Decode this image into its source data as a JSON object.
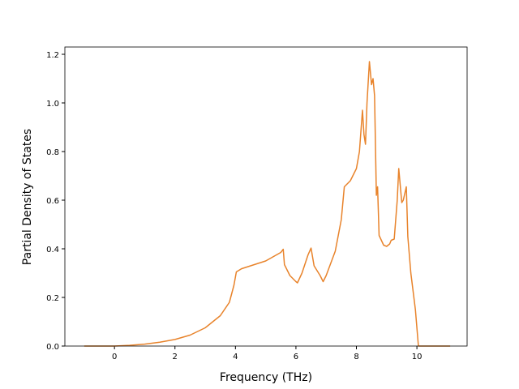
{
  "chart_data": {
    "type": "line",
    "xlabel": "Frequency (THz)",
    "ylabel": "Partial Density of States",
    "x": [
      -1,
      0,
      0.5,
      1,
      1.5,
      2,
      2.5,
      3,
      3.5,
      3.8,
      3.95,
      4.03,
      4.2,
      4.5,
      5,
      5.5,
      5.58,
      5.62,
      5.8,
      6,
      6.05,
      6.2,
      6.4,
      6.5,
      6.6,
      6.8,
      6.9,
      7,
      7.3,
      7.5,
      7.6,
      7.8,
      8,
      8.1,
      8.2,
      8.25,
      8.3,
      8.35,
      8.43,
      8.5,
      8.55,
      8.6,
      8.66,
      8.7,
      8.75,
      8.9,
      9,
      9.1,
      9.15,
      9.25,
      9.35,
      9.4,
      9.45,
      9.5,
      9.55,
      9.65,
      9.7,
      9.8,
      9.95,
      10.05,
      11.1
    ],
    "values": [
      0,
      0,
      0.003,
      0.008,
      0.016,
      0.027,
      0.045,
      0.075,
      0.125,
      0.18,
      0.25,
      0.305,
      0.318,
      0.33,
      0.35,
      0.385,
      0.398,
      0.335,
      0.29,
      0.265,
      0.26,
      0.3,
      0.375,
      0.403,
      0.33,
      0.29,
      0.265,
      0.29,
      0.39,
      0.52,
      0.655,
      0.68,
      0.73,
      0.8,
      0.97,
      0.87,
      0.83,
      1.0,
      1.17,
      1.075,
      1.1,
      1.03,
      0.62,
      0.655,
      0.455,
      0.415,
      0.41,
      0.42,
      0.435,
      0.44,
      0.6,
      0.73,
      0.66,
      0.59,
      0.6,
      0.655,
      0.45,
      0.3,
      0.15,
      0,
      0
    ],
    "color": "#e8832b",
    "xlim": [
      -1.64,
      11.66
    ],
    "xticks": [
      0,
      2,
      4,
      6,
      8,
      10
    ],
    "ylim": [
      0,
      1.23
    ],
    "yticks": [
      {
        "value": 0,
        "label": "0.0"
      },
      0.2,
      0.4,
      0.6,
      0.8,
      {
        "value": 1,
        "label": "1.0"
      },
      1.2
    ]
  }
}
